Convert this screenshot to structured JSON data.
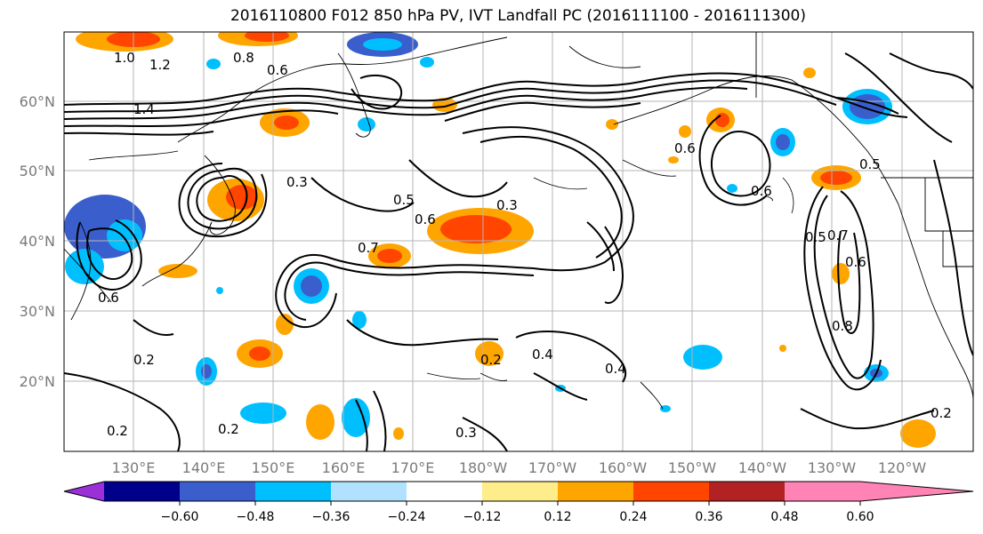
{
  "title": "2016110800 F012 850 hPa PV, IVT Landfall PC (2016111100 - 2016111300)",
  "map": {
    "lat_labels": [
      "60°N",
      "50°N",
      "40°N",
      "30°N",
      "20°N"
    ],
    "lon_labels": [
      "130°E",
      "140°E",
      "150°E",
      "160°E",
      "170°E",
      "180°W",
      "170°W",
      "160°W",
      "150°W",
      "140°W",
      "130°W",
      "120°W"
    ],
    "contour_labels": [
      "1.2",
      "1.0",
      "0.8",
      "0.6",
      "1.4",
      "0.5",
      "0.3",
      "0.7",
      "0.6",
      "0.2",
      "0.4",
      "0.2",
      "0.3",
      "0.6",
      "0.5",
      "0.7",
      "0.8",
      "0.6",
      "0.2",
      "0.2",
      "0.4",
      "0.3",
      "0.6",
      "0.5",
      "0.6",
      "0.2"
    ]
  },
  "colorbar": {
    "ticks": [
      "−0.60",
      "−0.48",
      "−0.36",
      "−0.24",
      "−0.12",
      "0.12",
      "0.24",
      "0.36",
      "0.48",
      "0.60"
    ],
    "colors": [
      "#9b30d9",
      "#00008b",
      "#3a5fcd",
      "#00bfff",
      "#b0e2ff",
      "#ffffff",
      "#ffec8b",
      "#ffa500",
      "#ff4500",
      "#b22222",
      "#ff83b4"
    ]
  }
}
